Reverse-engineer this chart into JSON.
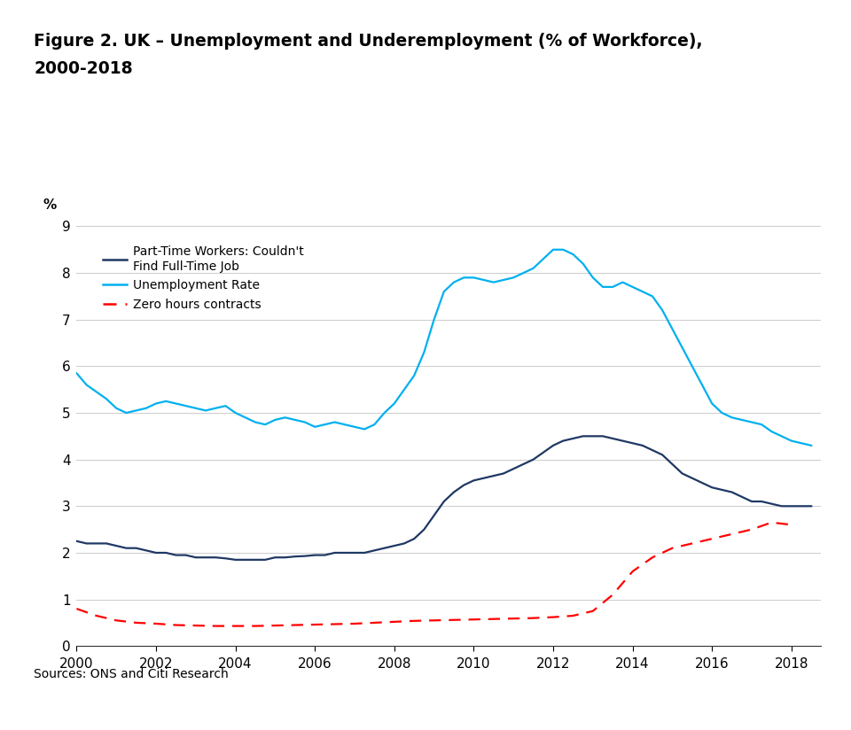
{
  "title_line1": "Figure 2. UK – Unemployment and Underemployment (% of Workforce),",
  "title_line2": "2000-2018",
  "ylabel": "%",
  "source": "Sources: ONS and Citi Research",
  "ylim": [
    0,
    9
  ],
  "yticks": [
    0,
    1,
    2,
    3,
    4,
    5,
    6,
    7,
    8,
    9
  ],
  "xlim_start": 2000.0,
  "xlim_end": 2018.75,
  "xticks": [
    2000,
    2002,
    2004,
    2006,
    2008,
    2010,
    2012,
    2014,
    2016,
    2018
  ],
  "top_bar_color": "#1f3864",
  "background_color": "#ffffff",
  "unemployment_color": "#00b0f0",
  "parttime_color": "#1f3864",
  "zerohours_color": "#ff0000",
  "unemployment_rate": {
    "years": [
      2000.0,
      2000.25,
      2000.5,
      2000.75,
      2001.0,
      2001.25,
      2001.5,
      2001.75,
      2002.0,
      2002.25,
      2002.5,
      2002.75,
      2003.0,
      2003.25,
      2003.5,
      2003.75,
      2004.0,
      2004.25,
      2004.5,
      2004.75,
      2005.0,
      2005.25,
      2005.5,
      2005.75,
      2006.0,
      2006.25,
      2006.5,
      2006.75,
      2007.0,
      2007.25,
      2007.5,
      2007.75,
      2008.0,
      2008.25,
      2008.5,
      2008.75,
      2009.0,
      2009.25,
      2009.5,
      2009.75,
      2010.0,
      2010.25,
      2010.5,
      2010.75,
      2011.0,
      2011.25,
      2011.5,
      2011.75,
      2012.0,
      2012.25,
      2012.5,
      2012.75,
      2013.0,
      2013.25,
      2013.5,
      2013.75,
      2014.0,
      2014.25,
      2014.5,
      2014.75,
      2015.0,
      2015.25,
      2015.5,
      2015.75,
      2016.0,
      2016.25,
      2016.5,
      2016.75,
      2017.0,
      2017.25,
      2017.5,
      2017.75,
      2018.0,
      2018.5
    ],
    "values": [
      5.85,
      5.6,
      5.45,
      5.3,
      5.1,
      5.0,
      5.05,
      5.1,
      5.2,
      5.25,
      5.2,
      5.15,
      5.1,
      5.05,
      5.1,
      5.15,
      5.0,
      4.9,
      4.8,
      4.75,
      4.85,
      4.9,
      4.85,
      4.8,
      4.7,
      4.75,
      4.8,
      4.75,
      4.7,
      4.65,
      4.75,
      5.0,
      5.2,
      5.5,
      5.8,
      6.3,
      7.0,
      7.6,
      7.8,
      7.9,
      7.9,
      7.85,
      7.8,
      7.85,
      7.9,
      8.0,
      8.1,
      8.3,
      8.5,
      8.5,
      8.4,
      8.2,
      7.9,
      7.7,
      7.7,
      7.8,
      7.7,
      7.6,
      7.5,
      7.2,
      6.8,
      6.4,
      6.0,
      5.6,
      5.2,
      5.0,
      4.9,
      4.85,
      4.8,
      4.75,
      4.6,
      4.5,
      4.4,
      4.3
    ]
  },
  "parttime_workers": {
    "years": [
      2000.0,
      2000.25,
      2000.5,
      2000.75,
      2001.0,
      2001.25,
      2001.5,
      2001.75,
      2002.0,
      2002.25,
      2002.5,
      2002.75,
      2003.0,
      2003.25,
      2003.5,
      2003.75,
      2004.0,
      2004.25,
      2004.5,
      2004.75,
      2005.0,
      2005.25,
      2005.5,
      2005.75,
      2006.0,
      2006.25,
      2006.5,
      2006.75,
      2007.0,
      2007.25,
      2007.5,
      2007.75,
      2008.0,
      2008.25,
      2008.5,
      2008.75,
      2009.0,
      2009.25,
      2009.5,
      2009.75,
      2010.0,
      2010.25,
      2010.5,
      2010.75,
      2011.0,
      2011.25,
      2011.5,
      2011.75,
      2012.0,
      2012.25,
      2012.5,
      2012.75,
      2013.0,
      2013.25,
      2013.5,
      2013.75,
      2014.0,
      2014.25,
      2014.5,
      2014.75,
      2015.0,
      2015.25,
      2015.5,
      2015.75,
      2016.0,
      2016.25,
      2016.5,
      2016.75,
      2017.0,
      2017.25,
      2017.5,
      2017.75,
      2018.0,
      2018.5
    ],
    "values": [
      2.25,
      2.2,
      2.2,
      2.2,
      2.15,
      2.1,
      2.1,
      2.05,
      2.0,
      2.0,
      1.95,
      1.95,
      1.9,
      1.9,
      1.9,
      1.88,
      1.85,
      1.85,
      1.85,
      1.85,
      1.9,
      1.9,
      1.92,
      1.93,
      1.95,
      1.95,
      2.0,
      2.0,
      2.0,
      2.0,
      2.05,
      2.1,
      2.15,
      2.2,
      2.3,
      2.5,
      2.8,
      3.1,
      3.3,
      3.45,
      3.55,
      3.6,
      3.65,
      3.7,
      3.8,
      3.9,
      4.0,
      4.15,
      4.3,
      4.4,
      4.45,
      4.5,
      4.5,
      4.5,
      4.45,
      4.4,
      4.35,
      4.3,
      4.2,
      4.1,
      3.9,
      3.7,
      3.6,
      3.5,
      3.4,
      3.35,
      3.3,
      3.2,
      3.1,
      3.1,
      3.05,
      3.0,
      3.0,
      3.0
    ]
  },
  "zerohours": {
    "years": [
      2000.0,
      2000.5,
      2001.0,
      2001.5,
      2002.0,
      2002.5,
      2003.0,
      2003.5,
      2004.0,
      2004.5,
      2005.0,
      2005.5,
      2006.0,
      2006.5,
      2007.0,
      2007.5,
      2008.0,
      2008.5,
      2009.0,
      2009.5,
      2010.0,
      2010.5,
      2011.0,
      2011.5,
      2012.0,
      2012.5,
      2013.0,
      2013.5,
      2014.0,
      2014.5,
      2015.0,
      2015.5,
      2016.0,
      2016.5,
      2017.0,
      2017.5,
      2018.0
    ],
    "values": [
      0.8,
      0.65,
      0.55,
      0.5,
      0.48,
      0.45,
      0.44,
      0.43,
      0.43,
      0.43,
      0.44,
      0.45,
      0.46,
      0.47,
      0.48,
      0.5,
      0.52,
      0.54,
      0.55,
      0.56,
      0.57,
      0.58,
      0.59,
      0.6,
      0.62,
      0.65,
      0.75,
      1.1,
      1.6,
      1.9,
      2.1,
      2.2,
      2.3,
      2.4,
      2.5,
      2.65,
      2.6
    ]
  }
}
